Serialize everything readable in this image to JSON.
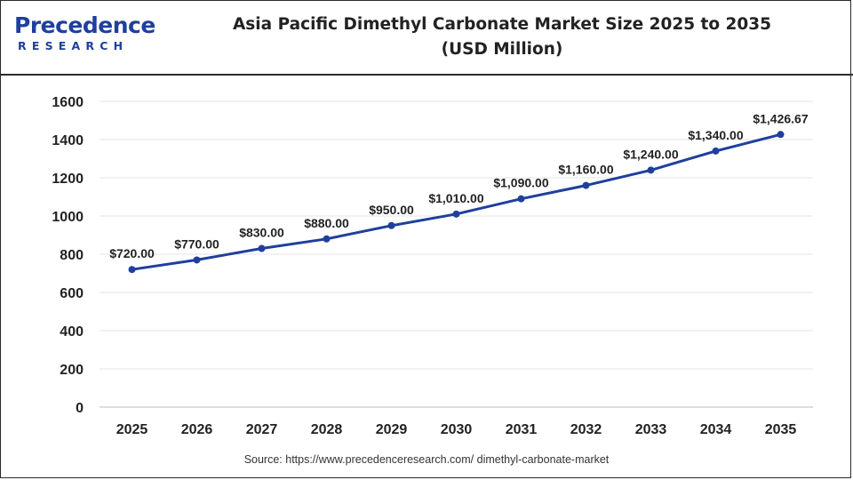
{
  "brand": {
    "name_line1": "Precedence",
    "name_line2": "RESEARCH",
    "colors": {
      "brand_blue": "#1f3f9c",
      "line": "#1f3f9c",
      "grid": "#e3e3e3",
      "text": "#222222"
    }
  },
  "title": {
    "line1": "Asia Pacific Dimethyl Carbonate Market Size 2025 to 2035",
    "line2": "(USD Million)"
  },
  "source": "Source: https://www.precedenceresearch.com/ dimethyl-carbonate-market",
  "chart_data": {
    "type": "line",
    "title": "Asia Pacific Dimethyl Carbonate Market Size 2025 to 2035 (USD Million)",
    "xlabel": "",
    "ylabel": "",
    "categories": [
      "2025",
      "2026",
      "2027",
      "2028",
      "2029",
      "2030",
      "2031",
      "2032",
      "2033",
      "2034",
      "2035"
    ],
    "series": [
      {
        "values": [
          720,
          770,
          830,
          880,
          950,
          1010,
          1090,
          1160,
          1240,
          1340,
          1426.67
        ],
        "labels": [
          "$720.00",
          "$770.00",
          "$830.00",
          "$880.00",
          "$950.00",
          "$1,010.00",
          "$1,090.00",
          "$1,160.00",
          "$1,240.00",
          "$1,340.00",
          "$1,426.67"
        ]
      }
    ],
    "yticks": [
      0,
      200,
      400,
      600,
      800,
      1000,
      1200,
      1400,
      1600
    ],
    "ylim": [
      0,
      1600
    ],
    "grid": true,
    "legend": "none"
  }
}
